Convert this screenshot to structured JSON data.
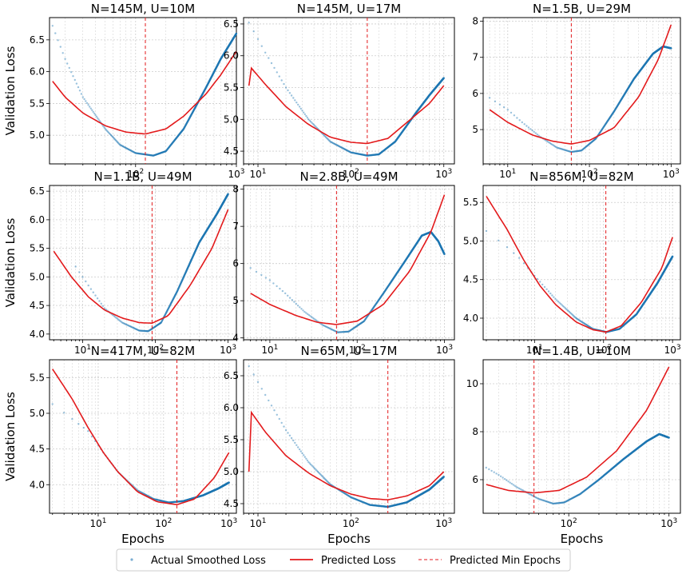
{
  "figure": {
    "y_label": "Validation Loss",
    "x_label": "Epochs",
    "legend": {
      "actual": "Actual Smoothed Loss",
      "predicted": "Predicted Loss",
      "min_epochs": "Predicted Min Epochs"
    },
    "colors": {
      "actual": "#1f77b4",
      "predicted": "#e31a1c",
      "min_epochs": "#e31a1c",
      "grid": "#cccccc"
    }
  },
  "chart_data": [
    {
      "type": "line",
      "title": "N=145M, U=10M",
      "xscale": "log",
      "xlim": [
        14,
        1000
      ],
      "ylim": [
        4.55,
        6.85
      ],
      "yticks": [
        5.0,
        5.5,
        6.0,
        6.5
      ],
      "ytick_labels": [
        "5.0",
        "5.5",
        "6.0",
        "6.5"
      ],
      "xticks": [
        100,
        1000
      ],
      "xtick_labels": [
        "10^2",
        "10^3"
      ],
      "min_epoch": 125,
      "actual": [
        [
          15,
          6.72
        ],
        [
          20,
          6.2
        ],
        [
          30,
          5.6
        ],
        [
          50,
          5.1
        ],
        [
          70,
          4.85
        ],
        [
          100,
          4.72
        ],
        [
          150,
          4.68
        ],
        [
          200,
          4.75
        ],
        [
          300,
          5.1
        ],
        [
          500,
          5.75
        ],
        [
          700,
          6.2
        ],
        [
          1000,
          6.6
        ]
      ],
      "predicted": [
        [
          15,
          5.85
        ],
        [
          20,
          5.6
        ],
        [
          30,
          5.35
        ],
        [
          50,
          5.15
        ],
        [
          80,
          5.05
        ],
        [
          125,
          5.02
        ],
        [
          200,
          5.1
        ],
        [
          300,
          5.3
        ],
        [
          500,
          5.65
        ],
        [
          700,
          5.95
        ],
        [
          1000,
          6.32
        ]
      ]
    },
    {
      "type": "line",
      "title": "N=145M, U=17M",
      "xscale": "log",
      "xlim": [
        7,
        1300
      ],
      "ylim": [
        4.3,
        6.6
      ],
      "yticks": [
        4.5,
        5.0,
        5.5,
        6.0,
        6.5
      ],
      "ytick_labels": [
        "4.5",
        "5.0",
        "5.5",
        "6.0",
        "6.5"
      ],
      "xticks": [
        10,
        100,
        1000
      ],
      "xtick_labels": [
        "10^1",
        "10^2",
        "10^3"
      ],
      "min_epoch": 150,
      "actual": [
        [
          8,
          6.52
        ],
        [
          12,
          6.05
        ],
        [
          20,
          5.5
        ],
        [
          35,
          5.0
        ],
        [
          60,
          4.65
        ],
        [
          100,
          4.48
        ],
        [
          150,
          4.43
        ],
        [
          200,
          4.45
        ],
        [
          300,
          4.65
        ],
        [
          500,
          5.1
        ],
        [
          700,
          5.38
        ],
        [
          1000,
          5.65
        ]
      ],
      "predicted": [
        [
          8,
          5.85
        ],
        [
          12,
          5.55
        ],
        [
          20,
          5.2
        ],
        [
          35,
          4.92
        ],
        [
          60,
          4.72
        ],
        [
          100,
          4.64
        ],
        [
          150,
          4.62
        ],
        [
          250,
          4.7
        ],
        [
          400,
          4.95
        ],
        [
          700,
          5.25
        ],
        [
          1000,
          5.53
        ]
      ]
    },
    {
      "type": "line",
      "title": "N=1.5B, U=29M",
      "xscale": "log",
      "xlim": [
        5,
        1300
      ],
      "ylim": [
        4.05,
        8.1
      ],
      "yticks": [
        5,
        6,
        7,
        8
      ],
      "ytick_labels": [
        "5",
        "6",
        "7",
        "8"
      ],
      "xticks": [
        10,
        100,
        1000
      ],
      "xtick_labels": [
        "10^1",
        "10^2",
        "10^3"
      ],
      "min_epoch": 60,
      "actual": [
        [
          6,
          5.88
        ],
        [
          10,
          5.55
        ],
        [
          15,
          5.2
        ],
        [
          25,
          4.8
        ],
        [
          40,
          4.5
        ],
        [
          60,
          4.38
        ],
        [
          80,
          4.42
        ],
        [
          120,
          4.75
        ],
        [
          200,
          5.5
        ],
        [
          350,
          6.4
        ],
        [
          600,
          7.1
        ],
        [
          800,
          7.3
        ],
        [
          1000,
          7.25
        ]
      ],
      "predicted": [
        [
          6,
          5.55
        ],
        [
          10,
          5.2
        ],
        [
          20,
          4.85
        ],
        [
          35,
          4.68
        ],
        [
          60,
          4.6
        ],
        [
          100,
          4.7
        ],
        [
          200,
          5.05
        ],
        [
          400,
          5.9
        ],
        [
          700,
          6.95
        ],
        [
          1000,
          7.9
        ]
      ]
    },
    {
      "type": "line",
      "title": "N=1.1B, U=49M",
      "xscale": "log",
      "xlim": [
        3.5,
        1300
      ],
      "ylim": [
        3.9,
        6.6
      ],
      "yticks": [
        4.0,
        4.5,
        5.0,
        5.5,
        6.0,
        6.5
      ],
      "ytick_labels": [
        "4.0",
        "4.5",
        "5.0",
        "5.5",
        "6.0",
        "6.5"
      ],
      "xticks": [
        10,
        100,
        1000
      ],
      "xtick_labels": [
        "10^1",
        "10^2",
        "10^3"
      ],
      "min_epoch": 90,
      "actual": [
        [
          8,
          5.18
        ],
        [
          12,
          4.85
        ],
        [
          20,
          4.45
        ],
        [
          35,
          4.2
        ],
        [
          60,
          4.06
        ],
        [
          80,
          4.05
        ],
        [
          120,
          4.2
        ],
        [
          200,
          4.75
        ],
        [
          400,
          5.6
        ],
        [
          700,
          6.1
        ],
        [
          1000,
          6.45
        ]
      ],
      "predicted": [
        [
          4,
          5.45
        ],
        [
          7,
          5.0
        ],
        [
          12,
          4.65
        ],
        [
          20,
          4.42
        ],
        [
          35,
          4.28
        ],
        [
          60,
          4.2
        ],
        [
          90,
          4.19
        ],
        [
          150,
          4.32
        ],
        [
          300,
          4.85
        ],
        [
          600,
          5.5
        ],
        [
          1000,
          6.18
        ]
      ]
    },
    {
      "type": "line",
      "title": "N=2.8B, U=49M",
      "xscale": "log",
      "xlim": [
        5,
        1300
      ],
      "ylim": [
        3.95,
        8.1
      ],
      "yticks": [
        4,
        5,
        6,
        7,
        8
      ],
      "ytick_labels": [
        "4",
        "5",
        "6",
        "7",
        "8"
      ],
      "xticks": [
        10,
        100,
        1000
      ],
      "xtick_labels": [
        "10^1",
        "10^2",
        "10^3"
      ],
      "min_epoch": 58,
      "actual": [
        [
          6,
          5.88
        ],
        [
          10,
          5.55
        ],
        [
          15,
          5.2
        ],
        [
          25,
          4.7
        ],
        [
          40,
          4.35
        ],
        [
          60,
          4.15
        ],
        [
          80,
          4.17
        ],
        [
          120,
          4.45
        ],
        [
          200,
          5.2
        ],
        [
          350,
          6.05
        ],
        [
          550,
          6.75
        ],
        [
          700,
          6.85
        ],
        [
          850,
          6.6
        ],
        [
          1000,
          6.25
        ]
      ],
      "predicted": [
        [
          6,
          5.2
        ],
        [
          10,
          4.9
        ],
        [
          20,
          4.6
        ],
        [
          35,
          4.42
        ],
        [
          58,
          4.36
        ],
        [
          100,
          4.45
        ],
        [
          200,
          4.9
        ],
        [
          400,
          5.8
        ],
        [
          700,
          6.85
        ],
        [
          1000,
          7.85
        ]
      ]
    },
    {
      "type": "line",
      "title": "N=856M, U=82M",
      "xscale": "log",
      "xlim": [
        1.8,
        1300
      ],
      "ylim": [
        3.72,
        5.72
      ],
      "yticks": [
        4.0,
        4.5,
        5.0,
        5.5
      ],
      "ytick_labels": [
        "4.0",
        "4.5",
        "5.0",
        "5.5"
      ],
      "xticks": [
        10,
        100,
        1000
      ],
      "xtick_labels": [
        "10^1",
        "10^2",
        "10^3"
      ],
      "min_epoch": 108,
      "actual": [
        [
          2,
          5.13
        ],
        [
          4,
          4.92
        ],
        [
          6,
          4.78
        ],
        [
          10,
          4.55
        ],
        [
          20,
          4.25
        ],
        [
          40,
          4.0
        ],
        [
          70,
          3.86
        ],
        [
          110,
          3.82
        ],
        [
          170,
          3.86
        ],
        [
          300,
          4.05
        ],
        [
          600,
          4.45
        ],
        [
          1000,
          4.8
        ]
      ],
      "predicted": [
        [
          2,
          5.58
        ],
        [
          4,
          5.15
        ],
        [
          7,
          4.75
        ],
        [
          12,
          4.42
        ],
        [
          20,
          4.18
        ],
        [
          40,
          3.95
        ],
        [
          70,
          3.85
        ],
        [
          108,
          3.82
        ],
        [
          180,
          3.9
        ],
        [
          350,
          4.2
        ],
        [
          700,
          4.65
        ],
        [
          1000,
          5.05
        ]
      ]
    },
    {
      "type": "line",
      "title": "N=417M, U=82M",
      "xscale": "log",
      "xlim": [
        1.8,
        1300
      ],
      "ylim": [
        3.6,
        5.75
      ],
      "yticks": [
        4.0,
        4.5,
        5.0,
        5.5
      ],
      "ytick_labels": [
        "4.0",
        "4.5",
        "5.0",
        "5.5"
      ],
      "xticks": [
        10,
        100,
        1000
      ],
      "xtick_labels": [
        "10^1",
        "10^2",
        "10^3"
      ],
      "min_epoch": 160,
      "actual": [
        [
          2,
          5.13
        ],
        [
          4,
          4.92
        ],
        [
          7,
          4.75
        ],
        [
          12,
          4.45
        ],
        [
          20,
          4.18
        ],
        [
          40,
          3.92
        ],
        [
          70,
          3.8
        ],
        [
          120,
          3.75
        ],
        [
          200,
          3.77
        ],
        [
          400,
          3.85
        ],
        [
          700,
          3.95
        ],
        [
          1000,
          4.03
        ]
      ],
      "predicted": [
        [
          2,
          5.62
        ],
        [
          4,
          5.2
        ],
        [
          7,
          4.8
        ],
        [
          12,
          4.45
        ],
        [
          20,
          4.18
        ],
        [
          40,
          3.9
        ],
        [
          80,
          3.76
        ],
        [
          160,
          3.72
        ],
        [
          300,
          3.8
        ],
        [
          600,
          4.1
        ],
        [
          1000,
          4.45
        ]
      ]
    },
    {
      "type": "line",
      "title": "N=65M, U=17M",
      "xscale": "log",
      "xlim": [
        7,
        1300
      ],
      "ylim": [
        4.35,
        6.75
      ],
      "yticks": [
        4.5,
        5.0,
        5.5,
        6.0,
        6.5
      ],
      "ytick_labels": [
        "4.5",
        "5.0",
        "5.5",
        "6.0",
        "6.5"
      ],
      "xticks": [
        10,
        100,
        1000
      ],
      "xtick_labels": [
        "10^1",
        "10^2",
        "10^3"
      ],
      "min_epoch": 250,
      "actual": [
        [
          8,
          6.65
        ],
        [
          12,
          6.2
        ],
        [
          20,
          5.65
        ],
        [
          35,
          5.15
        ],
        [
          60,
          4.8
        ],
        [
          100,
          4.6
        ],
        [
          160,
          4.48
        ],
        [
          250,
          4.45
        ],
        [
          400,
          4.52
        ],
        [
          700,
          4.72
        ],
        [
          1000,
          4.92
        ]
      ],
      "predicted": [
        [
          8,
          5.98
        ],
        [
          12,
          5.62
        ],
        [
          20,
          5.25
        ],
        [
          35,
          4.98
        ],
        [
          60,
          4.78
        ],
        [
          100,
          4.65
        ],
        [
          160,
          4.58
        ],
        [
          250,
          4.56
        ],
        [
          400,
          4.62
        ],
        [
          700,
          4.78
        ],
        [
          1000,
          5.0
        ]
      ]
    },
    {
      "type": "line",
      "title": "N=1.4B, U=10M",
      "xscale": "log",
      "xlim": [
        14,
        1300
      ],
      "ylim": [
        4.6,
        11.0
      ],
      "yticks": [
        6,
        8,
        10
      ],
      "ytick_labels": [
        "6",
        "8",
        "10"
      ],
      "xticks": [
        100,
        1000
      ],
      "xtick_labels": [
        "10^2",
        "10^3"
      ],
      "min_epoch": 45,
      "actual": [
        [
          15,
          6.5
        ],
        [
          20,
          6.2
        ],
        [
          30,
          5.7
        ],
        [
          50,
          5.2
        ],
        [
          70,
          5.0
        ],
        [
          90,
          5.05
        ],
        [
          130,
          5.4
        ],
        [
          200,
          6.0
        ],
        [
          350,
          6.85
        ],
        [
          600,
          7.6
        ],
        [
          800,
          7.9
        ],
        [
          1000,
          7.75
        ]
      ],
      "predicted": [
        [
          15,
          5.8
        ],
        [
          25,
          5.55
        ],
        [
          45,
          5.45
        ],
        [
          80,
          5.55
        ],
        [
          150,
          6.1
        ],
        [
          300,
          7.2
        ],
        [
          600,
          8.9
        ],
        [
          1000,
          10.7
        ]
      ]
    }
  ]
}
